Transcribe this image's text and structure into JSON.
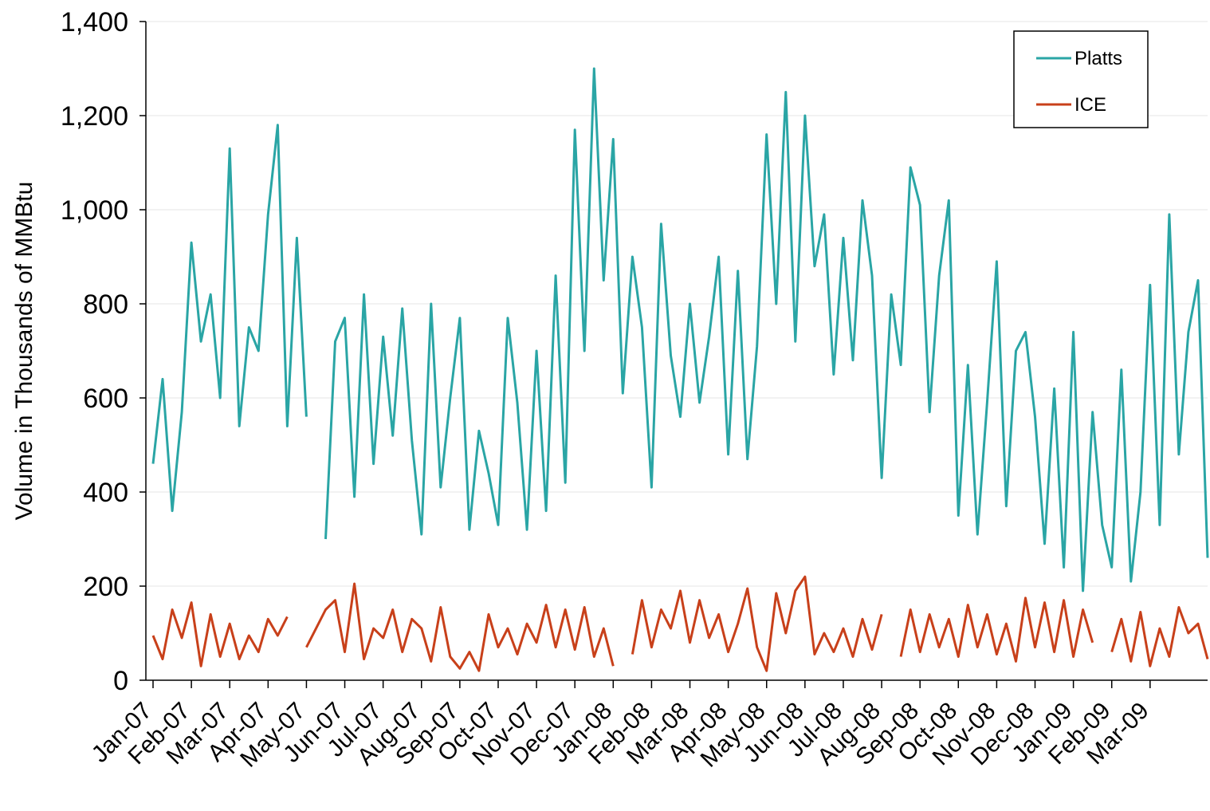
{
  "chart_data": {
    "type": "line",
    "ylabel": "Volume in Thousands of MMBtu",
    "categories": [
      "Jan-07",
      null,
      null,
      null,
      "Feb-07",
      null,
      null,
      null,
      "Mar-07",
      null,
      null,
      null,
      "Apr-07",
      null,
      null,
      null,
      "May-07",
      null,
      null,
      null,
      "Jun-07",
      null,
      null,
      null,
      "Jul-07",
      null,
      null,
      null,
      "Aug-07",
      null,
      null,
      null,
      "Sep-07",
      null,
      null,
      null,
      "Oct-07",
      null,
      null,
      null,
      "Nov-07",
      null,
      null,
      null,
      "Dec-07",
      null,
      null,
      null,
      "Jan-08",
      null,
      null,
      null,
      "Feb-08",
      null,
      null,
      null,
      "Mar-08",
      null,
      null,
      null,
      "Apr-08",
      null,
      null,
      null,
      "May-08",
      null,
      null,
      null,
      "Jun-08",
      null,
      null,
      null,
      "Jul-08",
      null,
      null,
      null,
      "Aug-08",
      null,
      null,
      null,
      "Sep-08",
      null,
      null,
      null,
      "Oct-08",
      null,
      null,
      null,
      "Nov-08",
      null,
      null,
      null,
      "Dec-08",
      null,
      null,
      null,
      "Jan-09",
      null,
      null,
      null,
      "Feb-09",
      null,
      null,
      null,
      "Mar-09",
      null,
      null,
      null,
      null,
      null,
      null
    ],
    "series": [
      {
        "name": "Platts",
        "color": "#2aa5a5",
        "values": [
          460,
          640,
          360,
          570,
          930,
          720,
          820,
          600,
          1130,
          540,
          750,
          700,
          990,
          1180,
          540,
          940,
          560,
          null,
          300,
          720,
          770,
          390,
          820,
          460,
          730,
          520,
          790,
          510,
          310,
          800,
          410,
          600,
          770,
          320,
          530,
          440,
          330,
          770,
          590,
          320,
          700,
          360,
          860,
          420,
          1170,
          700,
          1300,
          850,
          1150,
          610,
          900,
          750,
          410,
          970,
          690,
          560,
          800,
          590,
          730,
          900,
          480,
          870,
          470,
          710,
          1160,
          800,
          1250,
          720,
          1200,
          880,
          990,
          650,
          940,
          680,
          1020,
          860,
          430,
          820,
          670,
          1090,
          1010,
          570,
          860,
          1020,
          350,
          670,
          310,
          590,
          890,
          370,
          700,
          740,
          560,
          290,
          620,
          240,
          740,
          190,
          570,
          330,
          240,
          660,
          210,
          400,
          840,
          330,
          990,
          480,
          740,
          850,
          260
        ]
      },
      {
        "name": "ICE",
        "color": "#c8401a",
        "values": [
          95,
          45,
          150,
          90,
          165,
          30,
          140,
          50,
          120,
          45,
          95,
          60,
          130,
          95,
          135,
          null,
          70,
          110,
          150,
          170,
          60,
          205,
          45,
          110,
          90,
          150,
          60,
          130,
          110,
          40,
          155,
          50,
          25,
          60,
          20,
          140,
          70,
          110,
          55,
          120,
          80,
          160,
          70,
          150,
          65,
          155,
          50,
          110,
          30,
          null,
          55,
          170,
          70,
          150,
          110,
          190,
          80,
          170,
          90,
          140,
          60,
          120,
          195,
          70,
          20,
          185,
          100,
          190,
          220,
          55,
          100,
          60,
          110,
          50,
          130,
          65,
          140,
          null,
          50,
          150,
          60,
          140,
          70,
          130,
          50,
          160,
          70,
          140,
          55,
          120,
          40,
          175,
          70,
          165,
          60,
          170,
          50,
          150,
          80,
          null,
          60,
          130,
          40,
          145,
          30,
          110,
          50,
          155,
          100,
          120,
          45
        ]
      }
    ],
    "ylim": [
      0,
      1400
    ],
    "yticks": [
      0,
      200,
      400,
      600,
      {
        "value": 800,
        "label": "800"
      },
      {
        "value": 1000,
        "label": "1,000"
      },
      {
        "value": 1200,
        "label": "1,200"
      },
      {
        "value": 1400,
        "label": "1,400"
      }
    ],
    "grid": true,
    "legend": "upper right"
  }
}
